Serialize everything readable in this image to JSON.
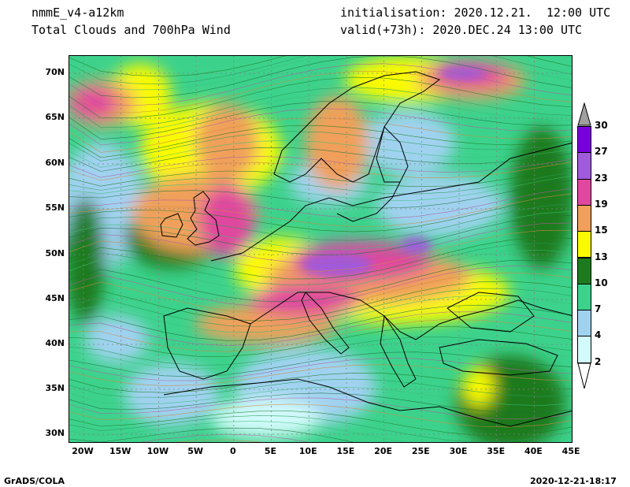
{
  "header": {
    "model": "nmmE_v4-a12km",
    "product": "Total Clouds and 700hPa Wind",
    "init": "initialisation: 2020.12.21.  12:00 UTC",
    "valid": "valid(+73h): 2020.DEC.24 13:00 UTC"
  },
  "axes": {
    "lat_labels": [
      "70N",
      "65N",
      "60N",
      "55N",
      "50N",
      "45N",
      "40N",
      "35N",
      "30N"
    ],
    "lon_labels": [
      "20W",
      "15W",
      "10W",
      "5W",
      "0",
      "5E",
      "10E",
      "15E",
      "20E",
      "25E",
      "30E",
      "35E",
      "40E",
      "45E"
    ]
  },
  "colorbar": {
    "labels": [
      "30",
      "27",
      "23",
      "19",
      "15",
      "13",
      "10",
      "7",
      "4",
      "2"
    ],
    "colors": [
      "#a0a0a0",
      "#7800dc",
      "#a05adc",
      "#e0479e",
      "#f0a05a",
      "#fafa00",
      "#1e7a1e",
      "#3cd28c",
      "#a0d2f0",
      "#d2fafa",
      "#ffffff"
    ]
  },
  "footer": {
    "left": "GrADS/COLA",
    "right": "2020-12-21-18:17"
  }
}
